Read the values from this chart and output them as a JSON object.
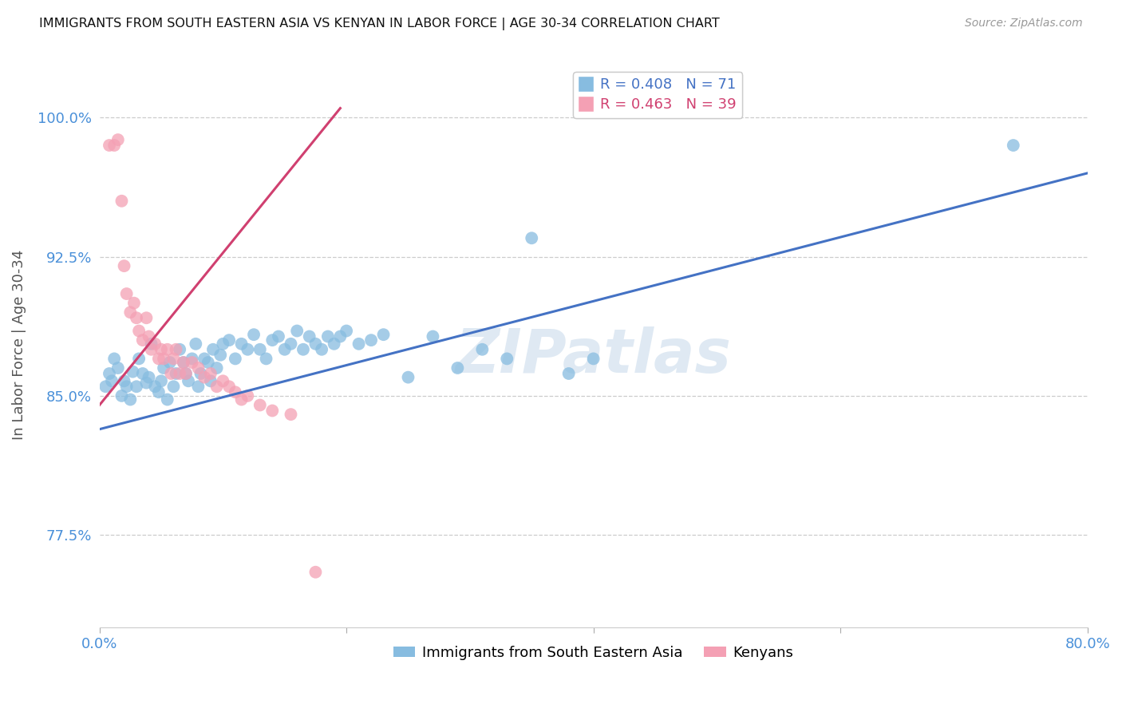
{
  "title": "IMMIGRANTS FROM SOUTH EASTERN ASIA VS KENYAN IN LABOR FORCE | AGE 30-34 CORRELATION CHART",
  "source": "Source: ZipAtlas.com",
  "ylabel": "In Labor Force | Age 30-34",
  "xlim": [
    0.0,
    0.8
  ],
  "ylim": [
    0.725,
    1.03
  ],
  "yticks": [
    0.775,
    0.85,
    0.925,
    1.0
  ],
  "ytick_labels": [
    "77.5%",
    "85.0%",
    "92.5%",
    "100.0%"
  ],
  "xticks": [
    0.0,
    0.2,
    0.4,
    0.6,
    0.8
  ],
  "xtick_labels": [
    "0.0%",
    "",
    "",
    "",
    "80.0%"
  ],
  "legend_blue_r": "0.408",
  "legend_blue_n": "71",
  "legend_pink_r": "0.463",
  "legend_pink_n": "39",
  "blue_color": "#87bce0",
  "pink_color": "#f4a0b4",
  "line_blue": "#4472c4",
  "line_pink": "#d04070",
  "watermark": "ZIPatlas",
  "blue_line_x0": 0.0,
  "blue_line_y0": 0.832,
  "blue_line_x1": 0.8,
  "blue_line_y1": 0.97,
  "pink_line_x0": 0.0,
  "pink_line_y0": 0.845,
  "pink_line_x1": 0.195,
  "pink_line_y1": 1.005,
  "blue_x": [
    0.005,
    0.008,
    0.01,
    0.012,
    0.015,
    0.018,
    0.02,
    0.022,
    0.025,
    0.027,
    0.03,
    0.032,
    0.035,
    0.038,
    0.04,
    0.042,
    0.045,
    0.048,
    0.05,
    0.052,
    0.055,
    0.057,
    0.06,
    0.062,
    0.065,
    0.068,
    0.07,
    0.072,
    0.075,
    0.078,
    0.08,
    0.082,
    0.085,
    0.088,
    0.09,
    0.092,
    0.095,
    0.098,
    0.1,
    0.105,
    0.11,
    0.115,
    0.12,
    0.125,
    0.13,
    0.135,
    0.14,
    0.145,
    0.15,
    0.155,
    0.16,
    0.165,
    0.17,
    0.175,
    0.18,
    0.185,
    0.19,
    0.195,
    0.2,
    0.21,
    0.22,
    0.23,
    0.25,
    0.27,
    0.29,
    0.31,
    0.33,
    0.35,
    0.38,
    0.4,
    0.74
  ],
  "blue_y": [
    0.855,
    0.862,
    0.858,
    0.87,
    0.865,
    0.85,
    0.858,
    0.855,
    0.848,
    0.863,
    0.855,
    0.87,
    0.862,
    0.857,
    0.86,
    0.878,
    0.855,
    0.852,
    0.858,
    0.865,
    0.848,
    0.868,
    0.855,
    0.862,
    0.875,
    0.868,
    0.862,
    0.858,
    0.87,
    0.878,
    0.855,
    0.862,
    0.87,
    0.868,
    0.858,
    0.875,
    0.865,
    0.872,
    0.878,
    0.88,
    0.87,
    0.878,
    0.875,
    0.883,
    0.875,
    0.87,
    0.88,
    0.882,
    0.875,
    0.878,
    0.885,
    0.875,
    0.882,
    0.878,
    0.875,
    0.882,
    0.878,
    0.882,
    0.885,
    0.878,
    0.88,
    0.883,
    0.86,
    0.882,
    0.865,
    0.875,
    0.87,
    0.935,
    0.862,
    0.87,
    0.985
  ],
  "pink_x": [
    0.008,
    0.012,
    0.015,
    0.018,
    0.02,
    0.022,
    0.025,
    0.028,
    0.03,
    0.032,
    0.035,
    0.038,
    0.04,
    0.042,
    0.045,
    0.048,
    0.05,
    0.052,
    0.055,
    0.058,
    0.06,
    0.062,
    0.065,
    0.068,
    0.07,
    0.075,
    0.08,
    0.085,
    0.09,
    0.095,
    0.1,
    0.105,
    0.11,
    0.115,
    0.12,
    0.13,
    0.14,
    0.155,
    0.175
  ],
  "pink_y": [
    0.985,
    0.985,
    0.988,
    0.955,
    0.92,
    0.905,
    0.895,
    0.9,
    0.892,
    0.885,
    0.88,
    0.892,
    0.882,
    0.875,
    0.878,
    0.87,
    0.875,
    0.87,
    0.875,
    0.862,
    0.87,
    0.875,
    0.862,
    0.868,
    0.862,
    0.868,
    0.865,
    0.86,
    0.862,
    0.855,
    0.858,
    0.855,
    0.852,
    0.848,
    0.85,
    0.845,
    0.842,
    0.84,
    0.755
  ]
}
